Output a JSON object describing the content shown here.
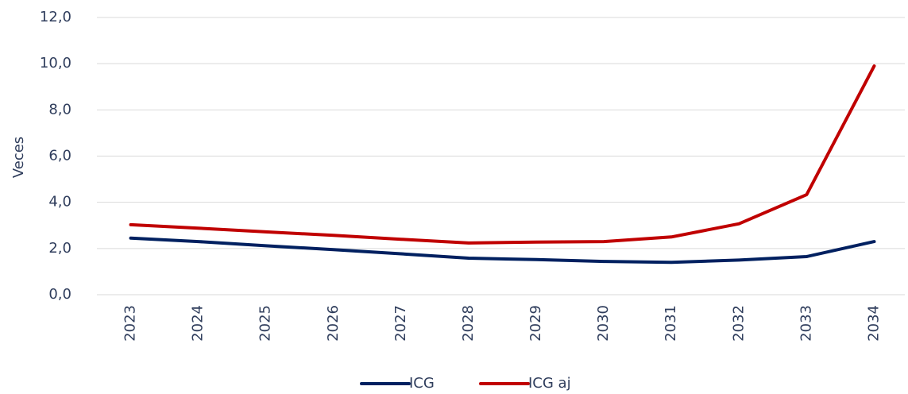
{
  "chart_data": {
    "type": "line",
    "y_label": "Veces",
    "categories": [
      "2023",
      "2024",
      "2025",
      "2026",
      "2027",
      "2028",
      "2029",
      "2030",
      "2031",
      "2032",
      "2033",
      "2034"
    ],
    "series": [
      {
        "name": "ICG",
        "color": "#002060",
        "values": [
          2.45,
          2.3,
          2.12,
          1.95,
          1.77,
          1.58,
          1.52,
          1.44,
          1.4,
          1.5,
          1.65,
          2.3
        ]
      },
      {
        "name": "ICG aj",
        "color": "#c00000",
        "values": [
          3.03,
          2.88,
          2.72,
          2.57,
          2.4,
          2.24,
          2.28,
          2.3,
          2.5,
          3.07,
          4.33,
          9.9
        ]
      }
    ],
    "ylim": [
      0,
      12
    ],
    "yticks": [
      {
        "value": 0,
        "label": "0,0"
      },
      {
        "value": 2,
        "label": "2,0"
      },
      {
        "value": 4,
        "label": "4,0"
      },
      {
        "value": 6,
        "label": "6,0"
      },
      {
        "value": 8,
        "label": "8,0"
      },
      {
        "value": 10,
        "label": "10,0"
      },
      {
        "value": 12,
        "label": "12,0"
      }
    ],
    "grid": true,
    "legend": "bottom"
  }
}
